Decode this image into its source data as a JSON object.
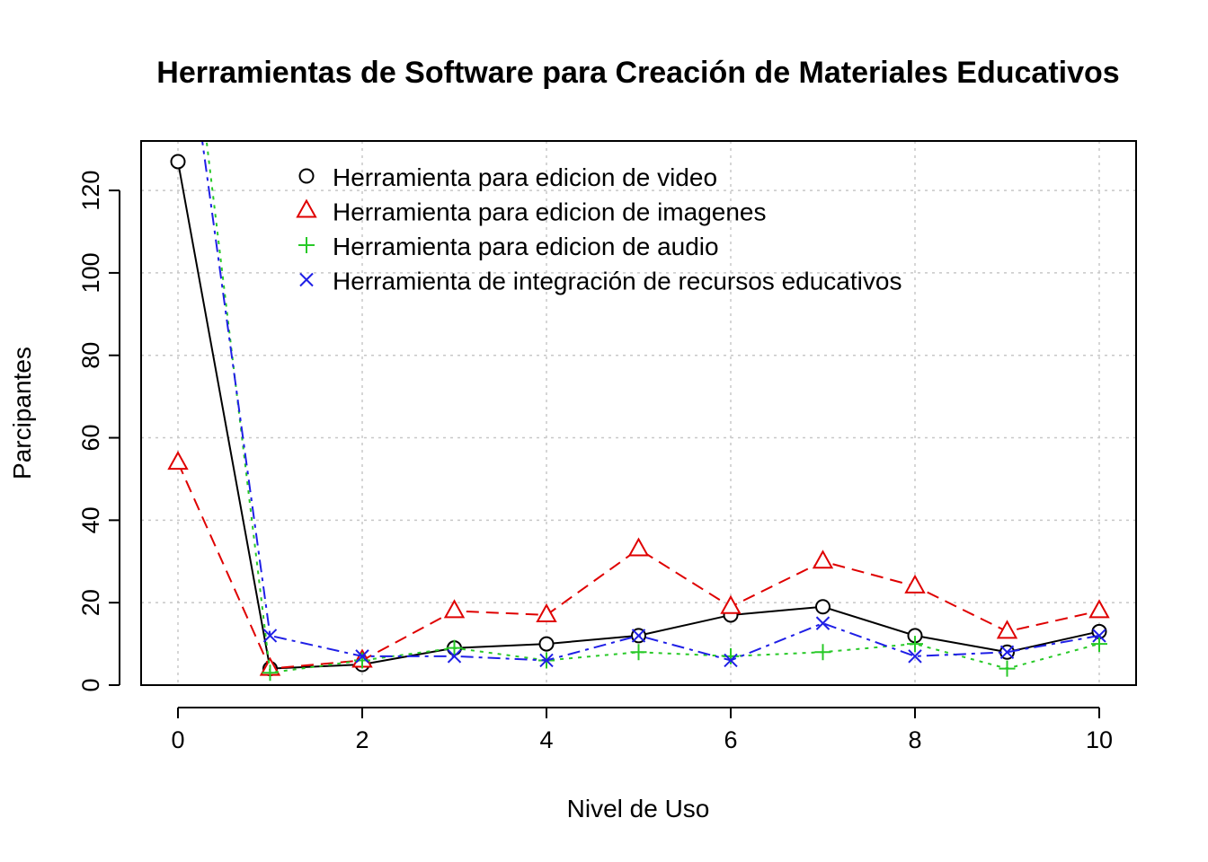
{
  "chart_data": {
    "type": "line",
    "title": "Herramientas de Software para Creación de Materiales Educativos",
    "xlabel": "Nivel de Uso",
    "ylabel": "Parcipantes",
    "x": [
      0,
      1,
      2,
      3,
      4,
      5,
      6,
      7,
      8,
      9,
      10
    ],
    "xticks": [
      "0",
      "2",
      "4",
      "6",
      "8",
      "10"
    ],
    "yticks": [
      "0",
      "20",
      "40",
      "60",
      "80",
      "100",
      "120"
    ],
    "xlim": [
      -0.4,
      10.4
    ],
    "ylim": [
      0,
      132
    ],
    "grid": true,
    "legend_position": "top",
    "series": [
      {
        "name": "Herramienta para edicion de video",
        "values": [
          127,
          4,
          5,
          9,
          10,
          12,
          17,
          19,
          12,
          8,
          13
        ],
        "color": "#000000",
        "marker": "circle",
        "dash": "solid"
      },
      {
        "name": "Herramienta para edicion de imagenes",
        "values": [
          54,
          4,
          6,
          18,
          17,
          33,
          19,
          30,
          24,
          13,
          18
        ],
        "color": "#DF0000",
        "marker": "triangle",
        "dash": "dashed"
      },
      {
        "name": "Herramienta para edicion de audio",
        "values": [
          190,
          3,
          6,
          9,
          6,
          8,
          7,
          8,
          10,
          4,
          10
        ],
        "color": "#28C928",
        "marker": "plus",
        "dash": "dotted"
      },
      {
        "name": "Herramienta de integración de recursos educativos",
        "values": [
          175,
          12,
          7,
          7,
          6,
          12,
          6,
          15,
          7,
          8,
          12
        ],
        "color": "#1F1FE6",
        "marker": "cross",
        "dash": "dotdash"
      }
    ]
  }
}
